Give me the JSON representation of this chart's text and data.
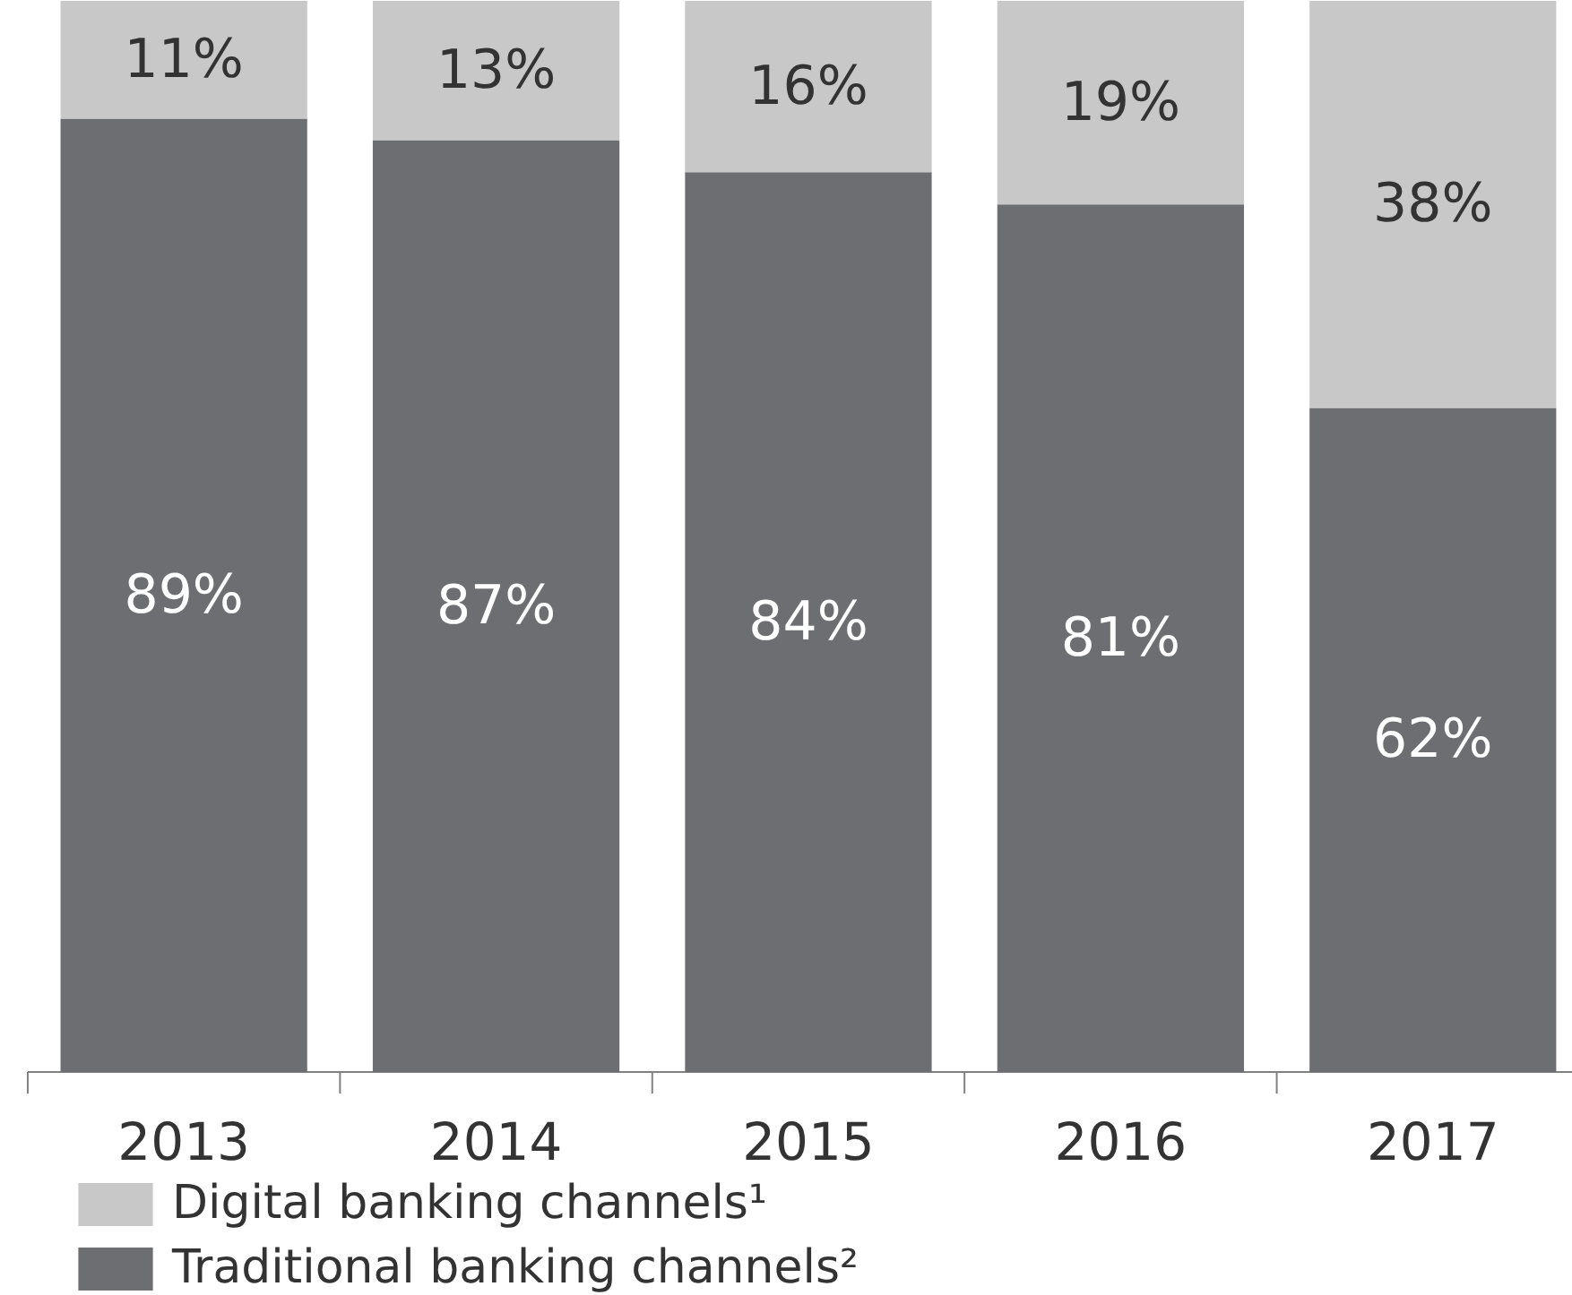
{
  "chart_data": {
    "type": "bar",
    "stacked": true,
    "legend": "bottom",
    "grid": false,
    "categories": [
      "2013",
      "2014",
      "2015",
      "2016",
      "2017"
    ],
    "series": [
      {
        "name": "Traditional banking channels²",
        "color": "#6d6e71",
        "values": [
          89,
          87,
          84,
          81,
          62
        ],
        "value_labels": [
          "89%",
          "87%",
          "84%",
          "81%",
          "62%"
        ]
      },
      {
        "name": "Digital banking channels¹",
        "color": "#c8c8c8",
        "values": [
          11,
          13,
          16,
          19,
          38
        ],
        "value_labels": [
          "11%",
          "13%",
          "16%",
          "19%",
          "38%"
        ]
      }
    ]
  }
}
